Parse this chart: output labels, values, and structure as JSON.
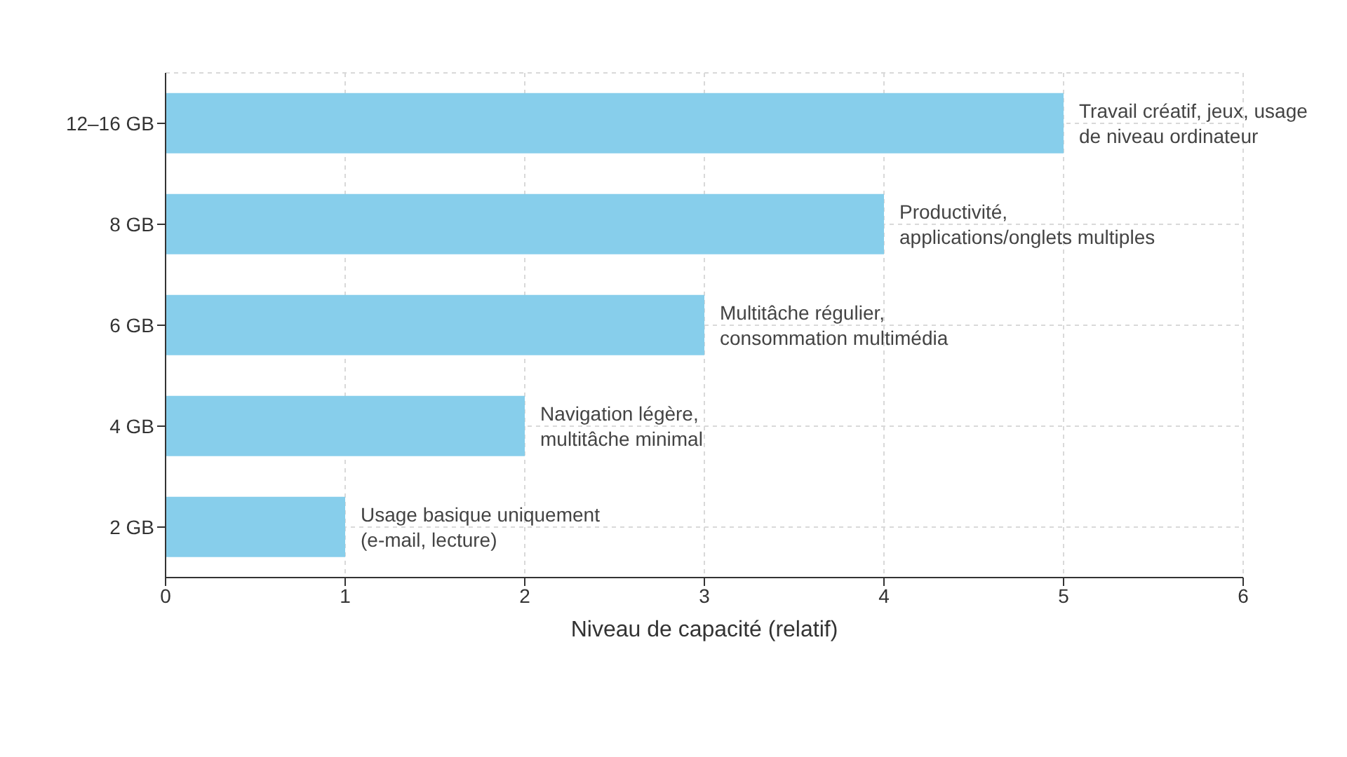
{
  "chart_data": {
    "type": "bar",
    "orientation": "horizontal",
    "xlabel": "Niveau de capacité (relatif)",
    "categories": [
      "12–16 GB",
      "8 GB",
      "6 GB",
      "4 GB",
      "2 GB"
    ],
    "values": [
      5,
      4,
      3,
      2,
      1
    ],
    "color": "#87ceeb",
    "xlim": [
      0,
      6
    ],
    "xticks": [
      0,
      1,
      2,
      3,
      4,
      5,
      6
    ],
    "grid": true,
    "annotations": [
      {
        "text": "Travail créatif, jeux, usage\nde niveau ordinateur",
        "x": 5,
        "y": "12–16 GB"
      },
      {
        "text": "Productivité,\napplications/onglets multiples",
        "x": 4,
        "y": "8 GB"
      },
      {
        "text": "Multitâche régulier,\nconsommation multimédia",
        "x": 3,
        "y": "6 GB"
      },
      {
        "text": "Navigation légère,\nmultitâche minimal",
        "x": 2,
        "y": "4 GB"
      },
      {
        "text": "Usage basique uniquement\n(e-mail, lecture)",
        "x": 1,
        "y": "2 GB"
      }
    ]
  }
}
